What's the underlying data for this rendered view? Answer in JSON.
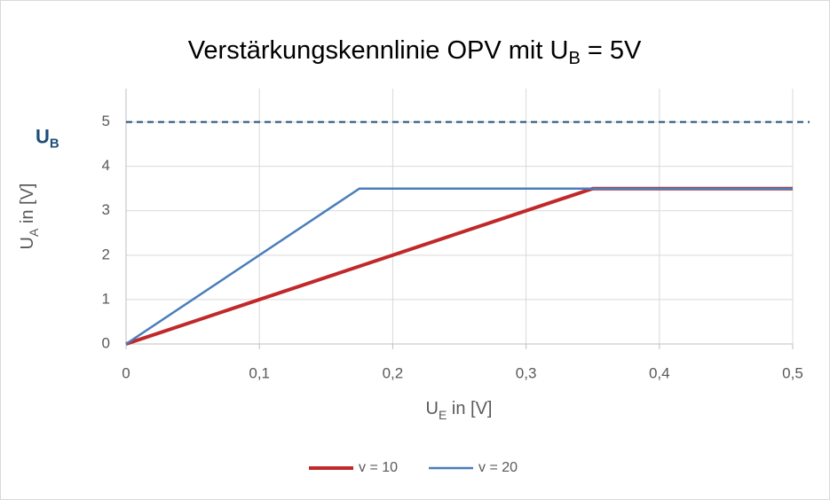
{
  "chart_data": {
    "type": "line",
    "title": [
      "Verstärkungskennlinie OPV mit U",
      "B",
      " = 5V"
    ],
    "xlabel": [
      "U",
      "E",
      " in [V]"
    ],
    "ylabel": [
      "U",
      "A",
      " in [V]"
    ],
    "xlim": [
      0,
      0.5
    ],
    "xticks": [
      0,
      {
        "value": 0.1,
        "label": "0,1"
      },
      {
        "value": 0.2,
        "label": "0,2"
      },
      {
        "value": 0.3,
        "label": "0,3"
      },
      {
        "value": 0.4,
        "label": "0,4"
      },
      {
        "value": 0.5,
        "label": "0,5"
      }
    ],
    "ylim": [
      0,
      5.75
    ],
    "yticks": [
      0,
      1,
      2,
      3,
      4,
      5
    ],
    "grid": true,
    "legend": "bottom",
    "reference_line": {
      "value": 5,
      "label": [
        "U",
        "B"
      ],
      "color": "#1f4e79",
      "style": "dashed"
    },
    "series": [
      {
        "name": "v = 10",
        "color": "#c0282a",
        "width": 4,
        "x": [
          0,
          0.35,
          0.5
        ],
        "values": [
          0,
          3.5,
          3.5
        ]
      },
      {
        "name": "v = 20",
        "color": "#4a7ebb",
        "width": 2.5,
        "x": [
          0,
          0.175,
          0.5
        ],
        "values": [
          0,
          3.5,
          3.5
        ]
      }
    ]
  }
}
